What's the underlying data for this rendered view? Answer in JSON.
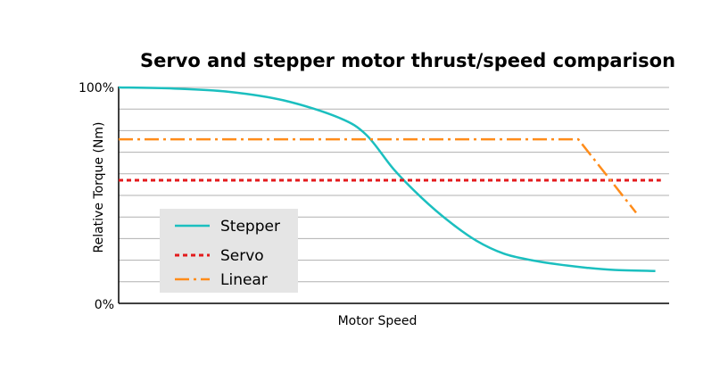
{
  "chart_data": {
    "type": "line",
    "title": "Servo and stepper motor thrust/speed comparison",
    "xlabel": "Motor Speed",
    "ylabel": "Relative Torque (Nm)",
    "ylim": [
      0,
      100
    ],
    "xlim": [
      0,
      100
    ],
    "y_tick_labels": [
      "0%",
      "100%"
    ],
    "grid": {
      "y": true,
      "x": false,
      "y_step": 10
    },
    "legend": {
      "position": "lower left",
      "entries": [
        "Stepper",
        "Servo",
        "Linear"
      ]
    },
    "series": [
      {
        "name": "Stepper",
        "style": "solid",
        "color": "#1bbfbf",
        "x": [
          0,
          10,
          20,
          30,
          40,
          45,
          50,
          55,
          60,
          65,
          70,
          75,
          80,
          85,
          90,
          97.5
        ],
        "values": [
          100,
          99.5,
          98,
          94,
          86,
          78,
          62,
          49,
          38,
          29,
          23,
          20,
          18,
          16.5,
          15.5,
          15
        ]
      },
      {
        "name": "Servo",
        "style": "dotted",
        "color": "#e31a1c",
        "x": [
          0,
          98.5
        ],
        "values": [
          57,
          57
        ]
      },
      {
        "name": "Linear",
        "style": "dashdot",
        "color": "#ff8c1a",
        "x": [
          0,
          83.5,
          94
        ],
        "values": [
          76,
          76,
          42
        ]
      }
    ]
  }
}
